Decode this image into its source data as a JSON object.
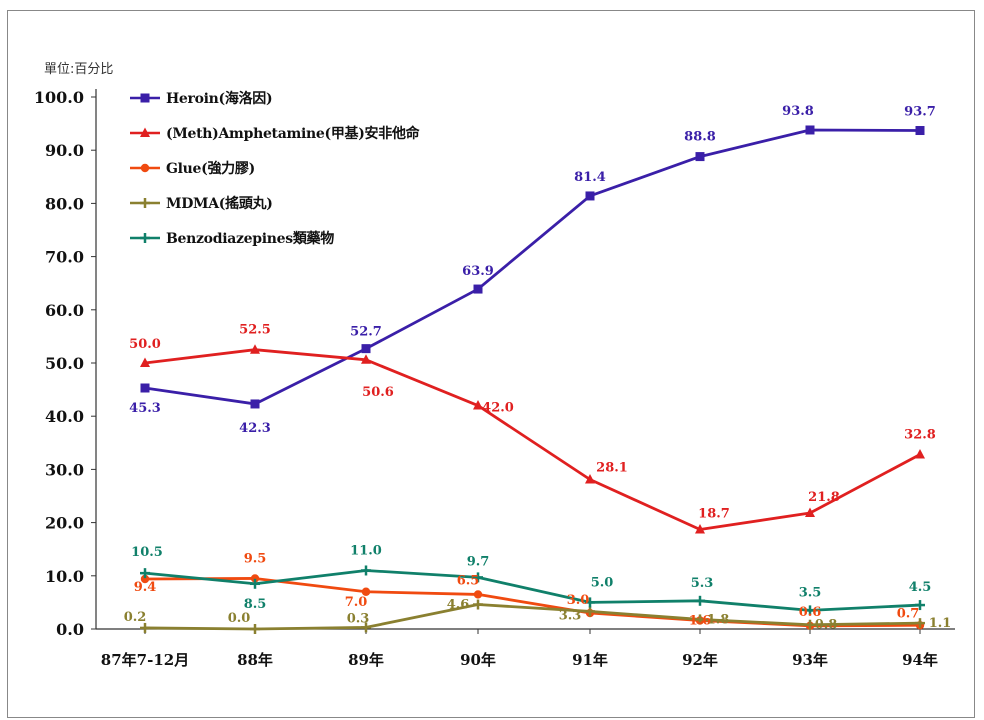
{
  "unit_label": "單位:百分比",
  "chart_data": {
    "type": "line",
    "title": "",
    "xlabel": "",
    "ylabel": "",
    "ylim": [
      0,
      100
    ],
    "yticks": [
      "0.0",
      "10.0",
      "20.0",
      "30.0",
      "40.0",
      "50.0",
      "60.0",
      "70.0",
      "80.0",
      "90.0",
      "100.0"
    ],
    "categories": [
      "87年7-12月",
      "88年",
      "89年",
      "90年",
      "91年",
      "92年",
      "93年",
      "94年"
    ],
    "legend_position": "top-left",
    "grid": false,
    "series": [
      {
        "name": "Heroin(海洛因)",
        "color": "#3a1fa8",
        "marker": "square",
        "values": [
          45.3,
          42.3,
          52.7,
          63.9,
          81.4,
          88.8,
          93.8,
          93.7
        ],
        "labels": [
          "45.3",
          "42.3",
          "52.7",
          "63.9",
          "81.4",
          "88.8",
          "93.8",
          "93.7"
        ]
      },
      {
        "name": "(Meth)Amphetamine(甲基)安非他命",
        "color": "#e02020",
        "marker": "triangle",
        "values": [
          50.0,
          52.5,
          50.6,
          42.0,
          28.1,
          18.7,
          21.8,
          32.8
        ],
        "labels": [
          "50.0",
          "52.5",
          "50.6",
          "42.0",
          "28.1",
          "18.7",
          "21.8",
          "32.8"
        ]
      },
      {
        "name": "Glue(強力膠)",
        "color": "#f04a10",
        "marker": "circle",
        "values": [
          9.4,
          9.5,
          7.0,
          6.5,
          3.0,
          1.6,
          0.6,
          0.7
        ],
        "labels": [
          "9.4",
          "9.5",
          "7.0",
          "6.5",
          "3.0",
          "1.6",
          "0.6",
          "0.7"
        ]
      },
      {
        "name": "MDMA(搖頭丸)",
        "color": "#8a8030",
        "marker": "plus",
        "values": [
          0.2,
          0.0,
          0.3,
          4.6,
          3.3,
          1.8,
          0.8,
          1.1
        ],
        "labels": [
          "0.2",
          "0.0",
          "0.3",
          "4.6",
          "3.3",
          "1.8",
          "0.8",
          "1.1"
        ]
      },
      {
        "name": "Benzodiazepines類藥物",
        "color": "#10806a",
        "marker": "plus",
        "values": [
          10.5,
          8.5,
          11.0,
          9.7,
          5.0,
          5.3,
          3.5,
          4.5
        ],
        "labels": [
          "10.5",
          "8.5",
          "11.0",
          "9.7",
          "5.0",
          "5.3",
          "3.5",
          "4.5"
        ]
      }
    ]
  }
}
